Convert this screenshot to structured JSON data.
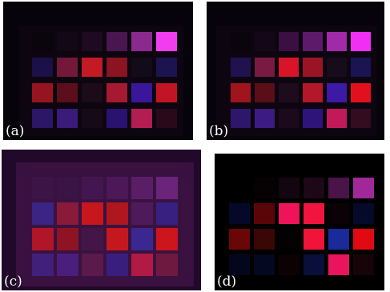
{
  "panels": [
    {
      "id": "panel-a",
      "label": "(a)",
      "colors": [
        [
          "#0a050d",
          "#120816",
          "#1f0a22",
          "#4a1650",
          "#8a2a8e",
          "#f23cf0"
        ],
        [
          "#1b1048",
          "#731838",
          "#c41a24",
          "#8a1420",
          "#140b1a",
          "#1c1450"
        ],
        [
          "#961420",
          "#5c0f1a",
          "#1b0c18",
          "#a51a30",
          "#3a169a",
          "#c11424"
        ],
        [
          "#2c1666",
          "#3a1b7a",
          "#160a18",
          "#2a1270",
          "#b21d52",
          "#2a0a1a"
        ]
      ]
    },
    {
      "id": "panel-b",
      "label": "(b)",
      "colors": [
        [
          "#0a050d",
          "#140818",
          "#3a1042",
          "#5e1a6a",
          "#a02aa8",
          "#f02ef4"
        ],
        [
          "#20124e",
          "#7a1a40",
          "#d81428",
          "#9a1426",
          "#160c1c",
          "#1a1452"
        ],
        [
          "#a0141e",
          "#5a0e18",
          "#1e0c1c",
          "#b4162a",
          "#3c1aa6",
          "#e2101e"
        ],
        [
          "#2e166a",
          "#3c1c80",
          "#1c0a1c",
          "#2e147a",
          "#c21a58",
          "#340c20"
        ]
      ]
    },
    {
      "id": "panel-c",
      "label": "(c)",
      "colors": [
        [
          "#3c1446",
          "#3a1444",
          "#441650",
          "#4c1858",
          "#5a1e66",
          "#6a247a"
        ],
        [
          "#3a2484",
          "#8a1a3a",
          "#c8161e",
          "#b0161e",
          "#4e1a5c",
          "#362080"
        ],
        [
          "#b01628",
          "#8e1424",
          "#441648",
          "#c4181e",
          "#3a2890",
          "#cc161c"
        ],
        [
          "#40207a",
          "#4a1e7c",
          "#5a1a4c",
          "#3a1e7e",
          "#b21a46",
          "#6e1a40"
        ]
      ]
    },
    {
      "id": "panel-d",
      "label": "(d)",
      "colors": [
        [
          "#000000",
          "#060204",
          "#140610",
          "#1e0818",
          "#4a1448",
          "#a0289a"
        ],
        [
          "#06082a",
          "#5a0608",
          "#ee145a",
          "#f0143e",
          "#0a0206",
          "#060a2a"
        ],
        [
          "#6a0606",
          "#3a0606",
          "#040102",
          "#f01438",
          "#1a2a9a",
          "#e00a10"
        ],
        [
          "#04061e",
          "#040820",
          "#0c0204",
          "#0a0e3a",
          "#e8145e",
          "#160408"
        ]
      ]
    }
  ]
}
